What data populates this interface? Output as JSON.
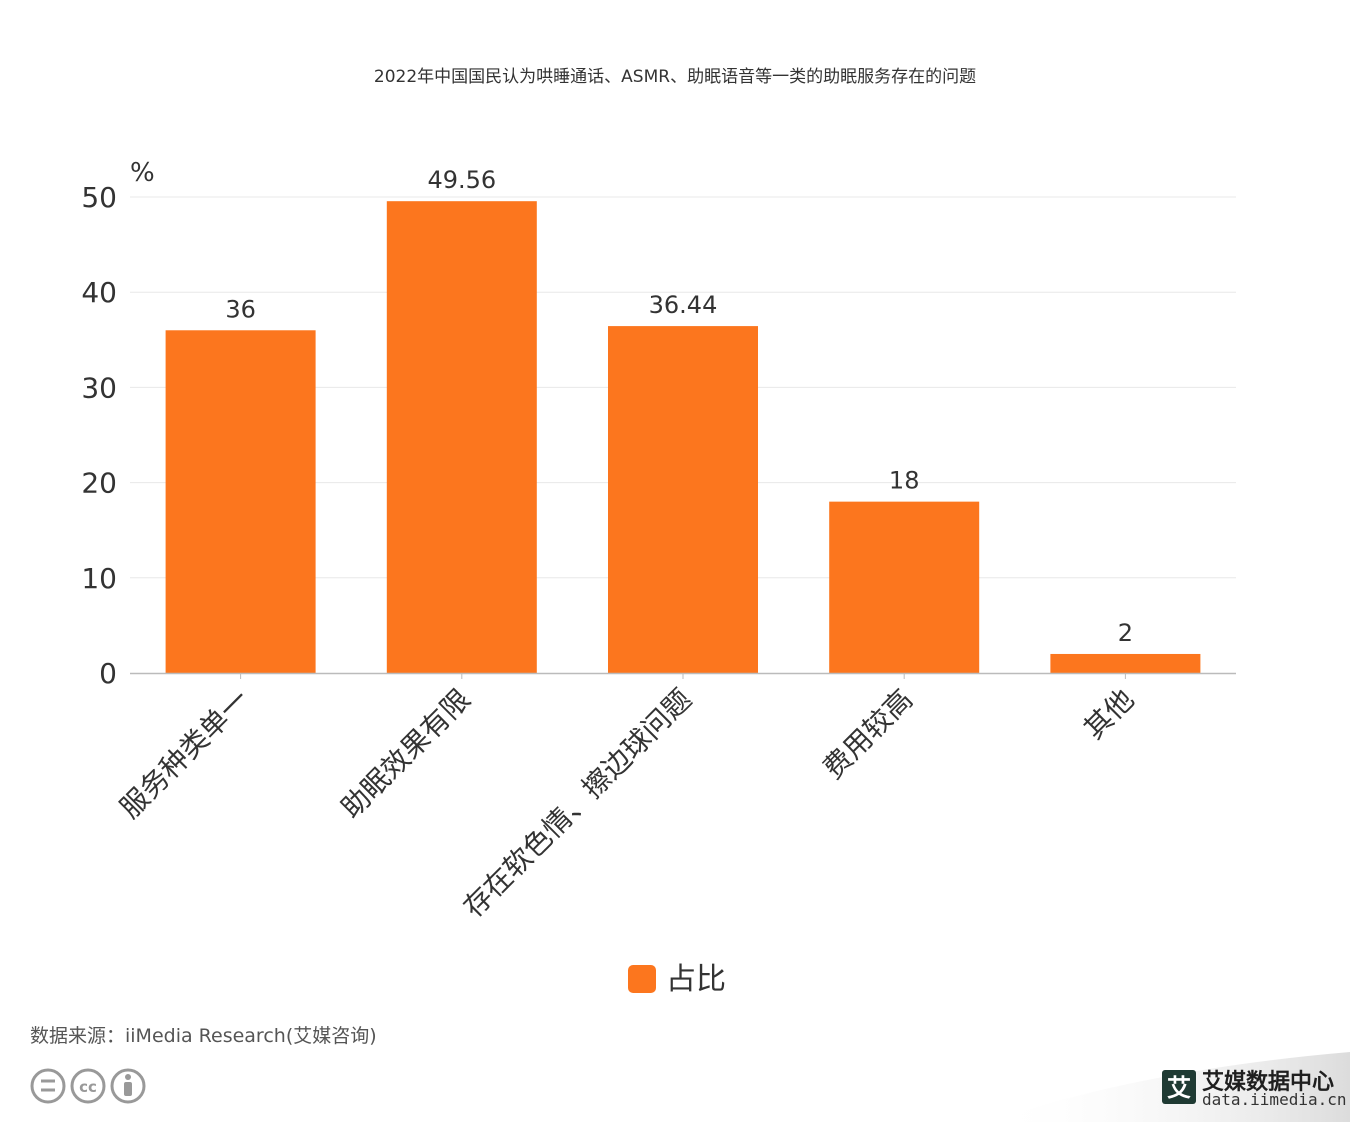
{
  "colors": {
    "bar": "#fc761e",
    "grid": "#e8e8e8",
    "axis": "#bbbbbb",
    "license": "#999999"
  },
  "chart_data": {
    "type": "bar",
    "title": "2022年中国国民认为哄睡通话、ASMR、助眠语音等一类的助眠服务存在的问题",
    "unit": "%",
    "categories": [
      "服务种类单一",
      "助眠效果有限",
      "存在软色情、擦边球问题",
      "费用较高",
      "其他"
    ],
    "series": [
      {
        "name": "占比",
        "values": [
          36,
          49.56,
          36.44,
          18,
          2
        ],
        "labels": [
          "36",
          "49.56",
          "36.44",
          "18",
          "2"
        ]
      }
    ],
    "ylim": [
      0,
      50
    ],
    "yticks": [
      "0",
      "10",
      "20",
      "30",
      "40",
      "50"
    ],
    "grid": true,
    "legend_position": "bottom-center"
  },
  "footer": {
    "source": "数据来源：iiMedia Research(艾媒咨询)",
    "license_icons": [
      "equals-circle-icon",
      "cc-circle-icon",
      "person-circle-icon"
    ]
  },
  "brand": {
    "logo_char": "艾",
    "name": "艾媒数据中心",
    "url": "data.iimedia.cn"
  }
}
